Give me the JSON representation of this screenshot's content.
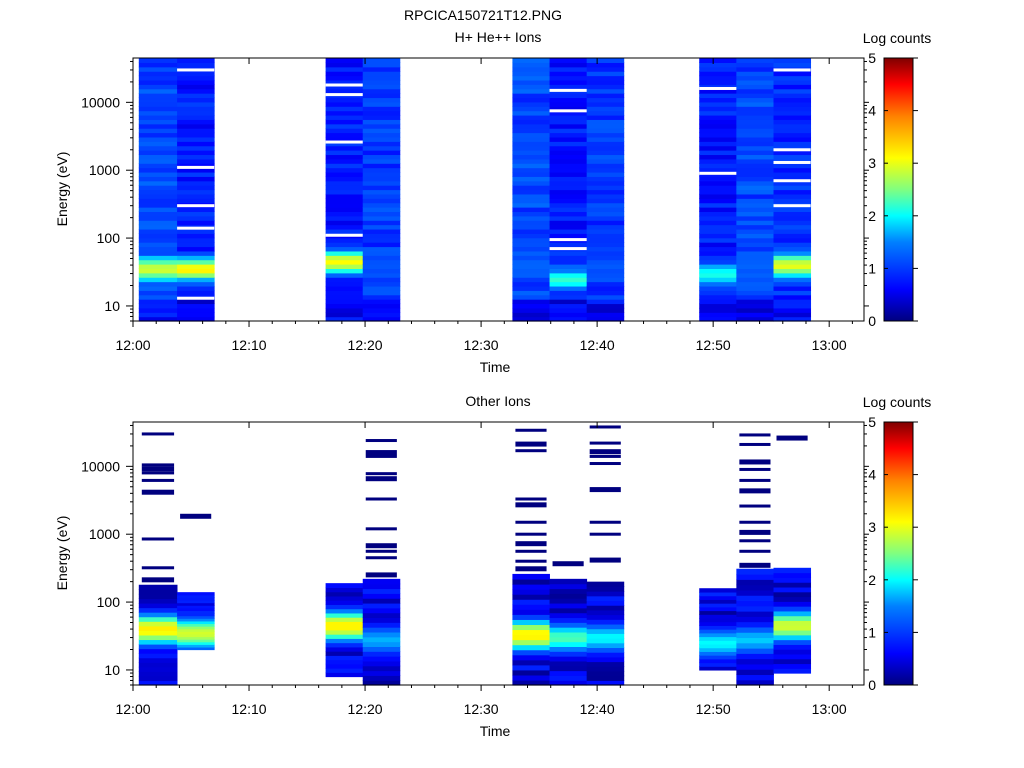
{
  "figure": {
    "title": "RPCICA150721T12.PNG"
  },
  "colors": {
    "colormap": [
      "#00007f",
      "#0000ff",
      "#0080ff",
      "#00ffff",
      "#80ff80",
      "#ffff00",
      "#ff8000",
      "#ff0000",
      "#7f0000"
    ],
    "background": "#ffffff"
  },
  "chart_data": [
    {
      "type": "heatmap",
      "title": "H+ He++ Ions",
      "xlabel": "Time",
      "ylabel": "Energy (eV)",
      "yscale": "log",
      "ylim": [
        6,
        45000
      ],
      "xlim": [
        "12:00",
        "13:03"
      ],
      "xticks": [
        "12:00",
        "12:10",
        "12:20",
        "12:30",
        "12:40",
        "12:50",
        "13:00"
      ],
      "yticks": [
        "10",
        "100",
        "1000",
        "10000"
      ],
      "colorbar": {
        "label": "Log counts",
        "range": [
          0,
          5
        ],
        "ticks": [
          "0",
          "1",
          "2",
          "3",
          "4",
          "5"
        ]
      },
      "columns": [
        {
          "start": "12:00.5",
          "end": "12:03.8",
          "low": 0.8,
          "peak": 2.9,
          "peak_energy": 35,
          "gaps": []
        },
        {
          "start": "12:03.8",
          "end": "12:07.0",
          "low": 0.5,
          "peak": 3.2,
          "peak_energy": 35,
          "gaps": [
            13,
            140,
            300,
            1100,
            30000
          ]
        },
        {
          "start": "12:16.6",
          "end": "12:19.8",
          "low": 0.5,
          "peak": 3.1,
          "peak_energy": 45,
          "gaps": [
            110,
            2600,
            13000,
            18000
          ]
        },
        {
          "start": "12:19.8",
          "end": "12:23.0",
          "low": 0.7,
          "peak": 1.2,
          "peak_energy": 40,
          "gaps": []
        },
        {
          "start": "12:32.7",
          "end": "12:35.9",
          "low": 0.8,
          "peak": 1.3,
          "peak_energy": 40,
          "gaps": []
        },
        {
          "start": "12:35.9",
          "end": "12:39.1",
          "low": 0.5,
          "peak": 2.2,
          "peak_energy": 25,
          "gaps": [
            70,
            95,
            7500,
            15000
          ]
        },
        {
          "start": "12:39.1",
          "end": "12:42.3",
          "low": 0.7,
          "peak": 1.2,
          "peak_energy": 40,
          "gaps": []
        },
        {
          "start": "12:48.8",
          "end": "12:52.0",
          "low": 0.5,
          "peak": 2.1,
          "peak_energy": 30,
          "gaps": [
            900,
            16000
          ]
        },
        {
          "start": "12:52.0",
          "end": "12:55.2",
          "low": 0.8,
          "peak": 1.3,
          "peak_energy": 40,
          "gaps": []
        },
        {
          "start": "12:55.2",
          "end": "12:58.4",
          "low": 0.6,
          "peak": 3.0,
          "peak_energy": 40,
          "gaps": [
            300,
            700,
            1300,
            2000,
            30000
          ]
        }
      ]
    },
    {
      "type": "heatmap",
      "title": "Other Ions",
      "xlabel": "Time",
      "ylabel": "Energy (eV)",
      "yscale": "log",
      "ylim": [
        6,
        45000
      ],
      "xlim": [
        "12:00",
        "13:03"
      ],
      "xticks": [
        "12:00",
        "12:10",
        "12:20",
        "12:30",
        "12:40",
        "12:50",
        "13:00"
      ],
      "yticks": [
        "10",
        "100",
        "1000",
        "10000"
      ],
      "colorbar": {
        "label": "Log counts",
        "range": [
          0,
          5
        ],
        "ticks": [
          "0",
          "1",
          "2",
          "3",
          "4",
          "5"
        ]
      },
      "columns": [
        {
          "start": "12:00.5",
          "end": "12:03.8",
          "bottom": 6,
          "top": 180,
          "peak": 3.2,
          "peak_energy": 40,
          "lines": [
            220,
            320,
            850,
            4300,
            6200,
            8000,
            9500,
            10500,
            30000
          ]
        },
        {
          "start": "12:03.8",
          "end": "12:07.0",
          "bottom": 20,
          "top": 140,
          "peak": 2.9,
          "peak_energy": 35,
          "lines": [
            1900
          ]
        },
        {
          "start": "12:16.6",
          "end": "12:19.8",
          "bottom": 8,
          "top": 190,
          "peak": 3.2,
          "peak_energy": 45,
          "lines": []
        },
        {
          "start": "12:19.8",
          "end": "12:23.0",
          "bottom": 6,
          "top": 220,
          "peak": 1.7,
          "peak_energy": 28,
          "lines": [
            260,
            450,
            560,
            700,
            1200,
            3300,
            6800,
            7800,
            14000,
            16500,
            24000
          ]
        },
        {
          "start": "12:32.7",
          "end": "12:35.9",
          "bottom": 6,
          "top": 260,
          "peak": 3.2,
          "peak_energy": 33,
          "lines": [
            320,
            400,
            560,
            750,
            1000,
            1500,
            2800,
            3300,
            17000,
            22000,
            34000
          ]
        },
        {
          "start": "12:35.9",
          "end": "12:39.1",
          "bottom": 6,
          "top": 220,
          "peak": 2.3,
          "peak_energy": 30,
          "lines": [
            380
          ]
        },
        {
          "start": "12:39.1",
          "end": "12:42.3",
          "bottom": 6,
          "top": 200,
          "peak": 2.0,
          "peak_energy": 30,
          "lines": [
            430,
            1000,
            1500,
            4700,
            11000,
            14000,
            17000,
            22000,
            38000
          ]
        },
        {
          "start": "12:48.8",
          "end": "12:52.0",
          "bottom": 10,
          "top": 160,
          "peak": 2.0,
          "peak_energy": 25,
          "lines": []
        },
        {
          "start": "12:52.0",
          "end": "12:55.2",
          "bottom": 6,
          "top": 310,
          "peak": 1.8,
          "peak_energy": 28,
          "lines": [
            360,
            560,
            800,
            1100,
            1500,
            2600,
            4500,
            6200,
            9000,
            12000,
            21000,
            29000
          ]
        },
        {
          "start": "12:55.2",
          "end": "12:58.4",
          "bottom": 9,
          "top": 320,
          "peak": 2.9,
          "peak_energy": 45,
          "lines": [
            27000
          ]
        }
      ]
    }
  ]
}
